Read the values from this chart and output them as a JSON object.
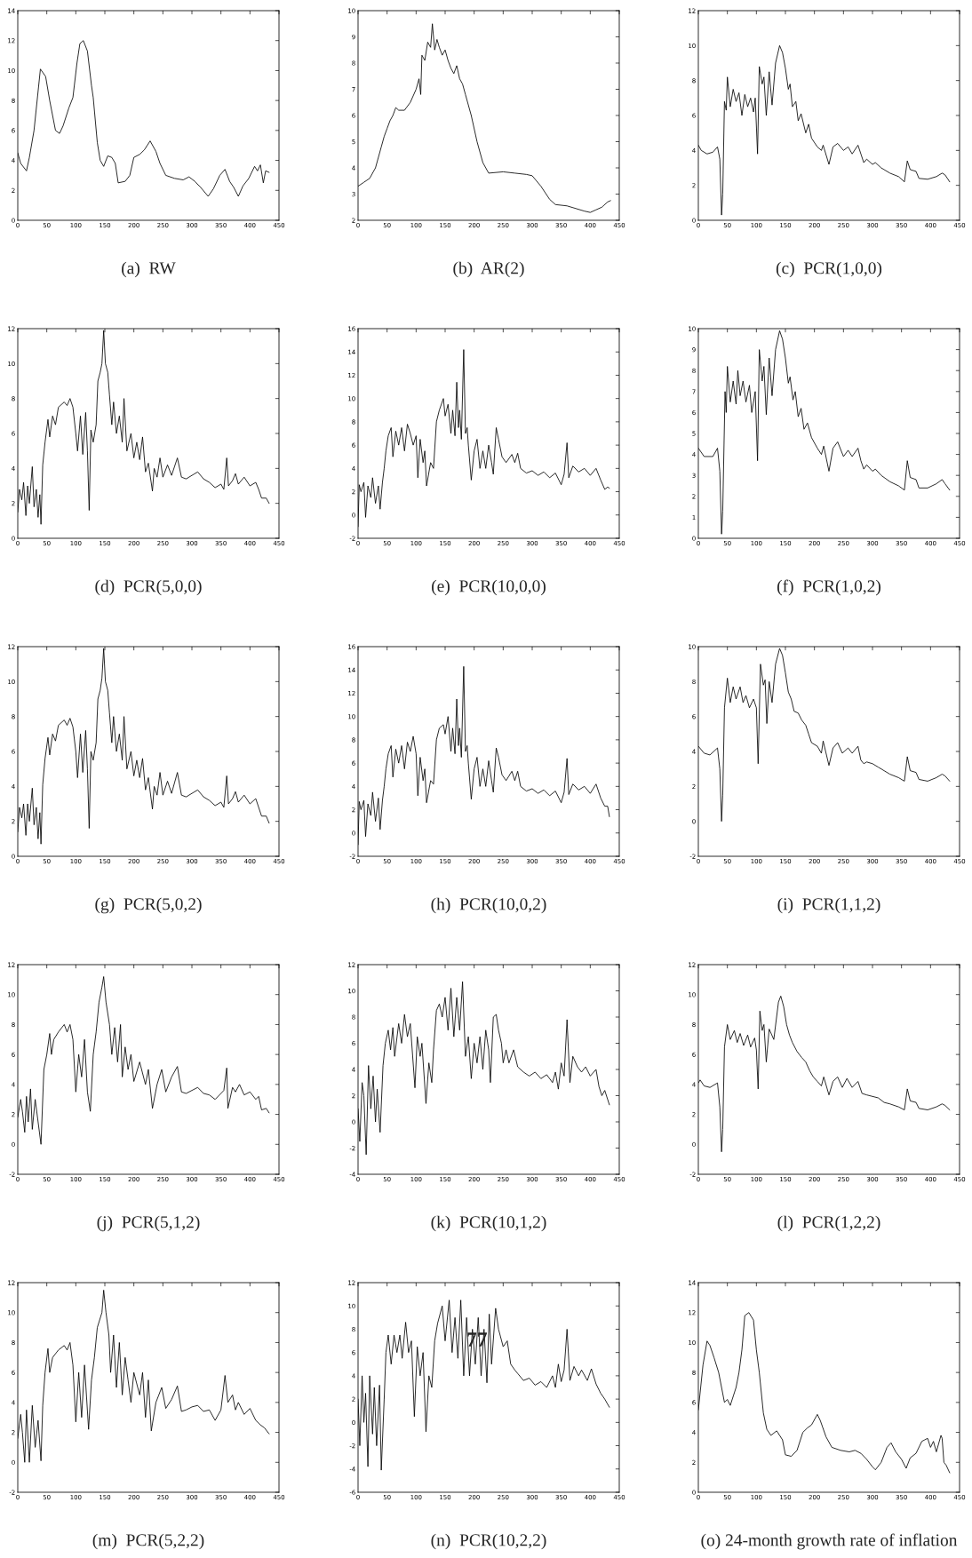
{
  "chart_data": [
    {
      "type": "line",
      "title": "(a)  RW",
      "x": [
        0,
        5,
        15,
        20,
        28,
        39,
        48,
        55,
        65,
        72,
        78,
        88,
        95,
        102,
        107,
        113,
        120,
        127,
        130,
        137,
        142,
        148,
        155,
        162,
        168,
        173,
        185,
        193,
        200,
        210,
        218,
        228,
        238,
        245,
        255,
        270,
        285,
        295,
        305,
        315,
        328,
        337,
        348,
        357,
        365,
        372,
        380,
        388,
        398,
        408,
        413,
        418,
        423,
        427,
        433
      ],
      "series": [
        {
          "color": "#000000",
          "values": [
            4.5,
            3.8,
            3.3,
            4.2,
            6,
            10.1,
            9.6,
            8,
            6,
            5.8,
            6.3,
            7.5,
            8.2,
            10.5,
            11.8,
            12,
            11.3,
            9,
            8.2,
            5.2,
            4,
            3.6,
            4.3,
            4.2,
            3.8,
            2.5,
            2.6,
            3,
            4.2,
            4.4,
            4.7,
            5.3,
            4.6,
            3.8,
            3,
            2.8,
            2.7,
            2.9,
            2.6,
            2.2,
            1.6,
            2.1,
            3,
            3.4,
            2.6,
            2.2,
            1.6,
            2.3,
            2.8,
            3.6,
            3.3,
            3.7,
            2.5,
            3.3,
            3.2
          ]
        }
      ],
      "xlim": [
        0,
        450
      ],
      "xticks": [
        0,
        50,
        100,
        150,
        200,
        250,
        300,
        350,
        400,
        450
      ],
      "ylim": [
        0,
        14
      ],
      "yticks": [
        0,
        2,
        4,
        6,
        8,
        10,
        12,
        14
      ]
    },
    {
      "type": "line",
      "title": "(b)  AR(2)",
      "x": [
        0,
        10,
        20,
        30,
        40,
        45,
        50,
        55,
        60,
        65,
        70,
        80,
        90,
        100,
        105,
        108,
        110,
        115,
        120,
        125,
        128,
        132,
        136,
        140,
        145,
        150,
        155,
        160,
        165,
        170,
        175,
        180,
        185,
        195,
        205,
        215,
        225,
        250,
        270,
        290,
        300,
        315,
        330,
        340,
        360,
        375,
        390,
        400,
        410,
        420,
        430,
        435
      ],
      "series": [
        {
          "color": "#000000",
          "values": [
            3.3,
            3.45,
            3.6,
            4,
            4.8,
            5.2,
            5.5,
            5.8,
            6,
            6.3,
            6.2,
            6.2,
            6.5,
            7,
            7.4,
            6.8,
            8.3,
            8.1,
            8.8,
            8.6,
            9.5,
            8.5,
            8.9,
            8.6,
            8.3,
            8.5,
            8.1,
            7.8,
            7.6,
            7.9,
            7.4,
            7.2,
            6.8,
            6,
            5,
            4.2,
            3.8,
            3.85,
            3.8,
            3.75,
            3.7,
            3.3,
            2.8,
            2.6,
            2.55,
            2.45,
            2.35,
            2.3,
            2.4,
            2.5,
            2.7,
            2.75
          ]
        }
      ],
      "xlim": [
        0,
        450
      ],
      "xticks": [
        0,
        50,
        100,
        150,
        200,
        250,
        300,
        350,
        400,
        450
      ],
      "ylim": [
        2,
        10
      ],
      "yticks": [
        2,
        3,
        4,
        5,
        6,
        7,
        8,
        9,
        10
      ]
    },
    {
      "type": "line",
      "title": "(c)  PCR(1,0,0)",
      "x": [
        0,
        5,
        15,
        25,
        33,
        37,
        40,
        42,
        45,
        48,
        50,
        55,
        60,
        65,
        70,
        75,
        80,
        85,
        90,
        95,
        98,
        102,
        105,
        110,
        113,
        117,
        122,
        127,
        133,
        140,
        145,
        150,
        155,
        158,
        162,
        168,
        172,
        177,
        185,
        190,
        195,
        205,
        212,
        215,
        225,
        232,
        240,
        250,
        258,
        265,
        275,
        280,
        285,
        290,
        300,
        305,
        315,
        330,
        345,
        355,
        360,
        365,
        375,
        380,
        395,
        410,
        420,
        425,
        433
      ],
      "series": [
        {
          "color": "#000000",
          "values": [
            4.3,
            4,
            3.8,
            3.9,
            4.2,
            3.5,
            0.3,
            1.5,
            6.8,
            6.3,
            8.2,
            6.5,
            7.5,
            6.8,
            7.3,
            6,
            7.2,
            6.5,
            7,
            6.2,
            7,
            3.8,
            8.8,
            7.8,
            8.2,
            6,
            8.5,
            6.6,
            9,
            10,
            9.6,
            8.7,
            7.5,
            7.8,
            6.5,
            6.8,
            5.7,
            6.1,
            5,
            5.5,
            4.7,
            4.2,
            4,
            4.3,
            3.2,
            4.2,
            4.4,
            4,
            4.2,
            3.8,
            4.3,
            3.8,
            3.3,
            3.5,
            3.2,
            3.3,
            3,
            2.7,
            2.5,
            2.2,
            3.4,
            2.9,
            2.8,
            2.4,
            2.35,
            2.5,
            2.7,
            2.6,
            2.2
          ]
        }
      ],
      "xlim": [
        0,
        450
      ],
      "xticks": [
        0,
        50,
        100,
        150,
        200,
        250,
        300,
        350,
        400,
        450
      ],
      "ylim": [
        0,
        12
      ],
      "yticks": [
        0,
        2,
        4,
        6,
        8,
        10,
        12
      ]
    },
    {
      "type": "line",
      "title": "(d)  PCR(5,0,0)",
      "x": [
        0,
        3,
        7,
        10,
        14,
        17,
        20,
        25,
        28,
        32,
        35,
        38,
        40,
        43,
        47,
        52,
        55,
        60,
        65,
        70,
        80,
        85,
        90,
        95,
        100,
        103,
        108,
        112,
        117,
        120,
        123,
        126,
        130,
        135,
        138,
        142,
        145,
        148,
        151,
        155,
        158,
        162,
        165,
        170,
        175,
        180,
        183,
        188,
        195,
        200,
        205,
        210,
        215,
        220,
        225,
        232,
        235,
        240,
        245,
        250,
        258,
        265,
        275,
        282,
        290,
        300,
        310,
        320,
        330,
        340,
        350,
        355,
        360,
        363,
        370,
        375,
        380,
        390,
        400,
        410,
        415,
        420,
        428,
        433
      ],
      "series": [
        {
          "color": "#000000",
          "values": [
            1.5,
            2.8,
            2.2,
            3.2,
            1.3,
            3,
            2,
            4.1,
            1.8,
            2.8,
            1.2,
            2.5,
            0.8,
            4.2,
            5.5,
            6.8,
            5.8,
            7,
            6.5,
            7.5,
            7.8,
            7.6,
            8,
            7.5,
            6,
            5,
            7,
            4.8,
            7.2,
            5,
            1.6,
            6.2,
            5.5,
            6.5,
            9,
            9.5,
            10,
            11.9,
            10,
            9.5,
            8.2,
            6.5,
            7.8,
            6,
            7,
            5.5,
            8,
            5,
            6,
            4.6,
            5.5,
            4.5,
            5.8,
            3.8,
            4.3,
            2.7,
            4,
            3.5,
            4.6,
            3.5,
            4.2,
            3.6,
            4.6,
            3.5,
            3.4,
            3.6,
            3.8,
            3.4,
            3.2,
            2.9,
            3.1,
            2.8,
            4.6,
            3,
            3.3,
            3.7,
            3.1,
            3.5,
            3,
            3.2,
            2.8,
            2.3,
            2.3,
            2
          ]
        }
      ],
      "xlim": [
        0,
        450
      ],
      "xticks": [
        0,
        50,
        100,
        150,
        200,
        250,
        300,
        350,
        400,
        450
      ],
      "ylim": [
        0,
        12
      ],
      "yticks": [
        0,
        2,
        4,
        6,
        8,
        10,
        12
      ]
    },
    {
      "type": "line",
      "title": "(e)  PCR(10,0,0)",
      "x": [
        0,
        2,
        5,
        10,
        13,
        17,
        22,
        25,
        30,
        35,
        38,
        42,
        45,
        48,
        52,
        57,
        60,
        65,
        70,
        75,
        80,
        85,
        90,
        95,
        100,
        103,
        107,
        112,
        115,
        118,
        125,
        130,
        135,
        140,
        147,
        150,
        155,
        160,
        163,
        167,
        170,
        173,
        175,
        178,
        182,
        185,
        188,
        190,
        195,
        200,
        205,
        210,
        215,
        220,
        225,
        230,
        233,
        238,
        242,
        248,
        255,
        265,
        270,
        275,
        280,
        290,
        300,
        310,
        320,
        330,
        340,
        350,
        355,
        360,
        363,
        370,
        380,
        390,
        400,
        410,
        418,
        425,
        430,
        433
      ],
      "series": [
        {
          "color": "#000000",
          "values": [
            -1,
            2.6,
            2,
            2.8,
            -0.2,
            2.5,
            1.5,
            3.2,
            1,
            2.5,
            0.5,
            2.8,
            4,
            5.5,
            6.8,
            7.5,
            5,
            7.2,
            6,
            7.5,
            5.5,
            7.8,
            7,
            6,
            6.8,
            3.2,
            6.5,
            4.5,
            5.5,
            2.5,
            4.5,
            4,
            8,
            9,
            10,
            8.5,
            9.5,
            7,
            9,
            6.8,
            11.4,
            7.5,
            9,
            6.5,
            14.2,
            7,
            7.5,
            6,
            3,
            5.5,
            6.5,
            4,
            5.5,
            4,
            6,
            4.5,
            3.5,
            7.5,
            6.5,
            5,
            4.5,
            5.2,
            4.5,
            5.3,
            4,
            3.6,
            3.8,
            3.4,
            3.7,
            3.2,
            3.6,
            2.6,
            3.5,
            6.2,
            3.2,
            4.2,
            3.7,
            4,
            3.4,
            4,
            3,
            2.2,
            2.4,
            2.3
          ]
        }
      ],
      "xlim": [
        0,
        450
      ],
      "xticks": [
        0,
        50,
        100,
        150,
        200,
        250,
        300,
        350,
        400,
        450
      ],
      "ylim": [
        -2,
        16
      ],
      "yticks": [
        -2,
        0,
        2,
        4,
        6,
        8,
        10,
        12,
        14,
        16
      ]
    },
    {
      "type": "line",
      "title": "(f)  PCR(1,0,2)",
      "x": [
        0,
        10,
        25,
        33,
        37,
        40,
        42,
        46,
        48,
        50,
        55,
        60,
        65,
        68,
        72,
        77,
        82,
        88,
        92,
        98,
        102,
        105,
        110,
        113,
        117,
        122,
        127,
        133,
        140,
        145,
        150,
        155,
        158,
        163,
        167,
        172,
        177,
        182,
        188,
        195,
        205,
        212,
        216,
        225,
        232,
        240,
        250,
        258,
        265,
        275,
        280,
        285,
        290,
        300,
        305,
        315,
        330,
        345,
        355,
        360,
        365,
        375,
        380,
        395,
        410,
        420,
        425,
        433
      ],
      "series": [
        {
          "color": "#000000",
          "values": [
            4.3,
            3.9,
            3.9,
            4.3,
            3.2,
            0.2,
            1.3,
            7,
            6,
            8.2,
            6.5,
            7.5,
            6.4,
            8,
            6.8,
            7.5,
            6.5,
            7.3,
            6,
            7,
            3.7,
            9,
            7.5,
            8.2,
            5.9,
            8.6,
            6.8,
            9,
            9.9,
            9.5,
            8.6,
            7.4,
            7.7,
            6.6,
            7,
            5.8,
            6.2,
            5.2,
            5.5,
            4.8,
            4.3,
            4,
            4.4,
            3.2,
            4.3,
            4.6,
            3.9,
            4.2,
            3.9,
            4.3,
            3.7,
            3.3,
            3.5,
            3.2,
            3.3,
            3,
            2.7,
            2.5,
            2.3,
            3.7,
            2.9,
            2.8,
            2.4,
            2.4,
            2.6,
            2.8,
            2.6,
            2.3
          ]
        }
      ],
      "xlim": [
        0,
        450
      ],
      "xticks": [
        0,
        50,
        100,
        150,
        200,
        250,
        300,
        350,
        400,
        450
      ],
      "ylim": [
        0,
        10
      ],
      "yticks": [
        0,
        1,
        2,
        3,
        4,
        5,
        6,
        7,
        8,
        9,
        10
      ]
    },
    {
      "type": "line",
      "title": "(g)  PCR(5,0,2)",
      "x": [
        0,
        3,
        7,
        10,
        14,
        17,
        20,
        25,
        28,
        32,
        35,
        38,
        40,
        43,
        47,
        52,
        55,
        60,
        65,
        70,
        80,
        85,
        90,
        95,
        100,
        103,
        108,
        112,
        117,
        120,
        123,
        126,
        130,
        135,
        138,
        142,
        145,
        148,
        151,
        155,
        158,
        162,
        165,
        170,
        175,
        180,
        183,
        188,
        195,
        200,
        205,
        210,
        215,
        220,
        225,
        232,
        235,
        240,
        245,
        250,
        258,
        265,
        275,
        282,
        290,
        300,
        310,
        320,
        330,
        340,
        350,
        355,
        360,
        363,
        370,
        375,
        380,
        390,
        400,
        410,
        415,
        420,
        428,
        433
      ],
      "series": [
        {
          "color": "#000000",
          "values": [
            1.4,
            2.8,
            2.2,
            3,
            1.2,
            3,
            2,
            3.9,
            1.8,
            2.8,
            1,
            2.5,
            0.7,
            4.1,
            5.6,
            6.8,
            5.8,
            7,
            6.6,
            7.5,
            7.8,
            7.5,
            7.9,
            7.4,
            6,
            4.5,
            7,
            4.8,
            7.2,
            5,
            1.6,
            6,
            5.5,
            6.5,
            9,
            9.5,
            10.2,
            11.9,
            10,
            9.5,
            8.2,
            6.5,
            8,
            6,
            7,
            5.5,
            8,
            5,
            6,
            4.6,
            5.5,
            4.5,
            5.6,
            3.8,
            4.5,
            2.7,
            4,
            3.5,
            4.8,
            3.5,
            4.3,
            3.6,
            4.8,
            3.5,
            3.4,
            3.6,
            3.8,
            3.4,
            3.2,
            2.9,
            3.1,
            2.8,
            4.6,
            3,
            3.3,
            3.7,
            3.1,
            3.5,
            3,
            3.3,
            2.8,
            2.3,
            2.3,
            1.9
          ]
        }
      ],
      "xlim": [
        0,
        450
      ],
      "xticks": [
        0,
        50,
        100,
        150,
        200,
        250,
        300,
        350,
        400,
        450
      ],
      "ylim": [
        0,
        12
      ],
      "yticks": [
        0,
        2,
        4,
        6,
        8,
        10,
        12
      ]
    },
    {
      "type": "line",
      "title": "(h)  PCR(10,0,2)",
      "x": [
        0,
        2,
        5,
        10,
        13,
        17,
        22,
        25,
        30,
        35,
        38,
        42,
        45,
        48,
        52,
        57,
        60,
        65,
        70,
        75,
        80,
        85,
        90,
        95,
        100,
        103,
        107,
        112,
        115,
        118,
        125,
        130,
        135,
        140,
        147,
        150,
        155,
        160,
        163,
        167,
        170,
        173,
        175,
        178,
        182,
        185,
        188,
        190,
        195,
        200,
        205,
        210,
        215,
        220,
        225,
        230,
        233,
        238,
        242,
        248,
        255,
        265,
        270,
        275,
        280,
        290,
        300,
        310,
        320,
        330,
        340,
        350,
        355,
        360,
        363,
        370,
        380,
        390,
        400,
        410,
        418,
        425,
        430,
        433
      ],
      "series": [
        {
          "color": "#000000",
          "values": [
            -1,
            2.7,
            2,
            2.8,
            -0.3,
            2.5,
            1.5,
            3.5,
            1,
            3,
            0.3,
            2.8,
            4,
            5.5,
            6.8,
            7.5,
            4.8,
            7.2,
            6,
            7.5,
            5.5,
            7.8,
            7,
            8.3,
            6.8,
            3.2,
            6.5,
            4.5,
            5.5,
            2.6,
            4.5,
            4.2,
            8,
            9,
            9.3,
            8.5,
            10,
            7,
            9,
            6.8,
            11.5,
            7.5,
            9,
            6.5,
            14.3,
            7,
            7.5,
            6,
            2.9,
            5.5,
            6.5,
            4,
            5.5,
            4,
            6.2,
            4.5,
            3.5,
            7.3,
            6.5,
            5,
            4.5,
            5.3,
            4.5,
            5.3,
            4,
            3.6,
            3.8,
            3.4,
            3.7,
            3.2,
            3.6,
            2.6,
            3.5,
            6.4,
            3.3,
            4.2,
            3.7,
            4,
            3.4,
            4.2,
            3,
            2.3,
            2.3,
            1.4
          ]
        }
      ],
      "xlim": [
        0,
        450
      ],
      "xticks": [
        0,
        50,
        100,
        150,
        200,
        250,
        300,
        350,
        400,
        450
      ],
      "ylim": [
        -2,
        16
      ],
      "yticks": [
        -2,
        0,
        2,
        4,
        6,
        8,
        10,
        12,
        14,
        16
      ]
    },
    {
      "type": "line",
      "title": "(i)  PCR(1,1,2)",
      "x": [
        0,
        10,
        20,
        33,
        37,
        40,
        42,
        45,
        50,
        55,
        60,
        65,
        72,
        77,
        82,
        88,
        95,
        100,
        103,
        107,
        112,
        115,
        118,
        122,
        127,
        133,
        140,
        145,
        150,
        155,
        160,
        165,
        172,
        178,
        185,
        190,
        195,
        205,
        212,
        215,
        225,
        232,
        240,
        248,
        258,
        265,
        275,
        280,
        285,
        290,
        300,
        310,
        320,
        330,
        345,
        355,
        360,
        365,
        375,
        380,
        395,
        410,
        420,
        425,
        433
      ],
      "series": [
        {
          "color": "#000000",
          "values": [
            4.3,
            3.9,
            3.8,
            4.2,
            3,
            0,
            1.5,
            6.5,
            8.2,
            6.8,
            7.7,
            7,
            7.7,
            6.8,
            7.2,
            6.5,
            7,
            6.5,
            3.3,
            9,
            7.8,
            8.1,
            5.6,
            8,
            6.8,
            9,
            9.9,
            9.5,
            8.5,
            7.4,
            7,
            6.3,
            6.2,
            5.8,
            5.5,
            5,
            4.5,
            4.3,
            3.9,
            4.6,
            3.2,
            4.2,
            4.5,
            3.9,
            4.2,
            3.9,
            4.3,
            3.5,
            3.3,
            3.4,
            3.3,
            3.1,
            2.9,
            2.7,
            2.5,
            2.3,
            3.7,
            2.9,
            2.8,
            2.4,
            2.3,
            2.5,
            2.7,
            2.6,
            2.3
          ]
        }
      ],
      "xlim": [
        0,
        450
      ],
      "xticks": [
        0,
        50,
        100,
        150,
        200,
        250,
        300,
        350,
        400,
        450
      ],
      "ylim": [
        -2,
        10
      ],
      "yticks": [
        -2,
        0,
        2,
        4,
        6,
        8,
        10
      ]
    },
    {
      "type": "line",
      "title": "(j)  PCR(5,1,2)",
      "x": [
        0,
        5,
        8,
        12,
        15,
        18,
        22,
        25,
        30,
        35,
        40,
        45,
        50,
        55,
        58,
        62,
        70,
        80,
        85,
        90,
        95,
        100,
        105,
        110,
        115,
        120,
        125,
        130,
        135,
        140,
        145,
        148,
        152,
        158,
        162,
        167,
        172,
        177,
        180,
        185,
        190,
        195,
        200,
        210,
        220,
        225,
        232,
        240,
        248,
        255,
        265,
        275,
        282,
        290,
        300,
        310,
        320,
        330,
        340,
        355,
        360,
        362,
        370,
        375,
        382,
        390,
        400,
        410,
        415,
        420,
        428,
        433
      ],
      "series": [
        {
          "color": "#000000",
          "values": [
            1.8,
            3,
            2.2,
            0.8,
            3.2,
            1.5,
            3.7,
            1,
            3,
            1.5,
            0,
            5,
            6,
            7.4,
            6,
            7,
            7.5,
            8,
            7.5,
            8,
            7,
            3.5,
            6,
            4.5,
            7,
            3.5,
            2.2,
            6,
            7.5,
            9.5,
            10.5,
            11.2,
            9.5,
            8,
            6,
            7.8,
            5.5,
            8,
            4.5,
            6.5,
            5,
            6,
            4.2,
            5.5,
            4,
            5,
            2.4,
            4,
            5,
            3.5,
            4.5,
            5.2,
            3.5,
            3.4,
            3.6,
            3.8,
            3.4,
            3.3,
            3,
            3.6,
            5.1,
            2.4,
            3.8,
            3.5,
            4,
            3.3,
            3.5,
            3,
            3.2,
            2.3,
            2.4,
            2.1
          ]
        }
      ],
      "xlim": [
        0,
        450
      ],
      "xticks": [
        0,
        50,
        100,
        150,
        200,
        250,
        300,
        350,
        400,
        450
      ],
      "ylim": [
        -2,
        12
      ],
      "yticks": [
        -2,
        0,
        2,
        4,
        6,
        8,
        10,
        12
      ]
    },
    {
      "type": "line",
      "title": "(k)  PCR(10,1,2)",
      "x": [
        0,
        3,
        7,
        10,
        14,
        18,
        22,
        26,
        30,
        33,
        38,
        43,
        47,
        52,
        56,
        60,
        63,
        70,
        75,
        80,
        85,
        90,
        98,
        102,
        107,
        110,
        117,
        122,
        127,
        130,
        135,
        140,
        145,
        150,
        155,
        160,
        165,
        170,
        175,
        180,
        185,
        190,
        195,
        200,
        205,
        210,
        215,
        220,
        225,
        228,
        233,
        238,
        242,
        247,
        250,
        255,
        260,
        268,
        275,
        285,
        295,
        305,
        315,
        325,
        335,
        340,
        345,
        350,
        355,
        360,
        365,
        370,
        378,
        385,
        392,
        400,
        410,
        415,
        420,
        425,
        433
      ],
      "series": [
        {
          "color": "#000000",
          "values": [
            1,
            -1.5,
            3,
            2,
            -2.5,
            4.3,
            1,
            3.5,
            0,
            2.5,
            -0.8,
            4.3,
            6,
            7,
            5.5,
            7.2,
            5,
            7.5,
            6,
            8.2,
            6.5,
            7.5,
            2.6,
            6.5,
            5,
            6,
            1.4,
            4.5,
            3,
            5.5,
            8.5,
            9,
            8,
            9.5,
            7,
            10.2,
            6.5,
            9.5,
            7,
            10.7,
            5,
            6.5,
            3.3,
            6,
            4.5,
            6.5,
            4,
            7,
            5.5,
            3,
            8,
            8.2,
            7,
            6,
            4.5,
            5.5,
            4.5,
            5.5,
            4.2,
            3.8,
            3.5,
            3.8,
            3.3,
            3.6,
            3,
            3.8,
            2.5,
            4.5,
            3.5,
            7.8,
            3,
            5,
            4.2,
            3.8,
            4.2,
            3.5,
            4,
            2.7,
            2,
            2.4,
            1.3
          ]
        }
      ],
      "xlim": [
        0,
        450
      ],
      "xticks": [
        0,
        50,
        100,
        150,
        200,
        250,
        300,
        350,
        400,
        450
      ],
      "ylim": [
        -4,
        12
      ],
      "yticks": [
        -4,
        -2,
        0,
        2,
        4,
        6,
        8,
        10,
        12
      ]
    },
    {
      "type": "line",
      "title": "(l)  PCR(1,2,2)",
      "x": [
        0,
        3,
        10,
        20,
        33,
        37,
        40,
        42,
        45,
        50,
        55,
        62,
        67,
        72,
        78,
        85,
        90,
        97,
        100,
        103,
        106,
        110,
        113,
        117,
        122,
        130,
        138,
        142,
        147,
        152,
        157,
        162,
        170,
        178,
        185,
        192,
        198,
        205,
        212,
        216,
        225,
        232,
        240,
        248,
        256,
        265,
        275,
        282,
        290,
        300,
        310,
        320,
        330,
        345,
        355,
        360,
        365,
        375,
        380,
        395,
        410,
        420,
        425,
        433
      ],
      "series": [
        {
          "color": "#000000",
          "values": [
            4.1,
            4.3,
            3.9,
            3.8,
            4.1,
            2.5,
            -0.5,
            1,
            6.5,
            8,
            7,
            7.6,
            6.8,
            7.4,
            6.6,
            7.3,
            6.5,
            7.1,
            6.3,
            3.7,
            8.9,
            7.6,
            8,
            5.5,
            7.7,
            7,
            9.5,
            9.9,
            9.2,
            8,
            7.3,
            6.8,
            6.2,
            5.8,
            5.5,
            4.9,
            4.5,
            4.2,
            3.9,
            4.5,
            3.3,
            4.2,
            4.5,
            3.8,
            4.4,
            3.8,
            4.2,
            3.4,
            3.3,
            3.2,
            3.1,
            2.8,
            2.7,
            2.5,
            2.3,
            3.7,
            2.9,
            2.8,
            2.4,
            2.3,
            2.5,
            2.7,
            2.6,
            2.3
          ]
        }
      ],
      "xlim": [
        0,
        450
      ],
      "xticks": [
        0,
        50,
        100,
        150,
        200,
        250,
        300,
        350,
        400,
        450
      ],
      "ylim": [
        -2,
        12
      ],
      "yticks": [
        -2,
        0,
        2,
        4,
        6,
        8,
        10,
        12
      ]
    },
    {
      "type": "line",
      "title": "(m)  PCR(5,2,2)",
      "x": [
        0,
        5,
        8,
        12,
        15,
        20,
        25,
        30,
        35,
        40,
        43,
        47,
        52,
        55,
        60,
        70,
        80,
        85,
        90,
        95,
        100,
        105,
        110,
        115,
        122,
        127,
        132,
        137,
        145,
        148,
        152,
        157,
        160,
        165,
        170,
        175,
        180,
        185,
        190,
        195,
        200,
        210,
        215,
        220,
        225,
        230,
        238,
        248,
        255,
        265,
        275,
        282,
        290,
        300,
        310,
        320,
        330,
        340,
        350,
        357,
        362,
        370,
        375,
        380,
        390,
        400,
        410,
        418,
        425,
        433
      ],
      "series": [
        {
          "color": "#000000",
          "values": [
            1.6,
            3.2,
            2,
            0,
            3.5,
            0,
            3.8,
            1,
            2.8,
            0.1,
            3.8,
            6,
            7.6,
            6,
            7,
            7.5,
            7.8,
            7.5,
            8,
            6.5,
            2.7,
            6,
            3,
            6.5,
            2.2,
            5.5,
            7,
            9,
            10,
            11.5,
            10,
            8.5,
            6,
            8.5,
            5,
            8,
            4.5,
            7,
            5.5,
            4,
            6,
            4.5,
            6,
            3,
            5.5,
            2.1,
            4,
            5,
            3.6,
            4.2,
            5.1,
            3.4,
            3.5,
            3.7,
            3.8,
            3.4,
            3.5,
            2.8,
            3.5,
            5.8,
            4,
            4.5,
            3.5,
            4,
            3.2,
            3.6,
            2.8,
            2.5,
            2.3,
            1.9
          ]
        }
      ],
      "xlim": [
        0,
        450
      ],
      "xticks": [
        0,
        50,
        100,
        150,
        200,
        250,
        300,
        350,
        400,
        450
      ],
      "ylim": [
        -2,
        12
      ],
      "yticks": [
        -2,
        0,
        2,
        4,
        6,
        8,
        10,
        12
      ]
    },
    {
      "type": "line",
      "title": "(n)  PCR(10,2,2)",
      "annotations": [
        "77"
      ],
      "x": [
        0,
        3,
        7,
        10,
        13,
        17,
        20,
        25,
        28,
        32,
        37,
        40,
        45,
        48,
        52,
        57,
        62,
        67,
        72,
        76,
        82,
        87,
        92,
        97,
        102,
        107,
        112,
        117,
        122,
        127,
        132,
        137,
        145,
        150,
        157,
        162,
        167,
        172,
        177,
        182,
        187,
        192,
        197,
        202,
        207,
        212,
        217,
        222,
        226,
        230,
        237,
        242,
        250,
        257,
        263,
        270,
        275,
        285,
        295,
        305,
        315,
        325,
        335,
        340,
        345,
        350,
        355,
        360,
        365,
        372,
        380,
        385,
        395,
        402,
        410,
        418,
        425,
        433
      ],
      "series": [
        {
          "color": "#000000",
          "values": [
            2,
            -2,
            4,
            0,
            2.5,
            -3.8,
            4,
            -1,
            3,
            -2,
            3.2,
            -4.1,
            2,
            6,
            7.5,
            5,
            7.5,
            6,
            7.5,
            5.5,
            8.6,
            6,
            7,
            0.5,
            6.5,
            4,
            6,
            -0.8,
            4,
            3,
            7,
            8.5,
            10,
            7,
            10.5,
            6,
            9,
            5.5,
            10.5,
            4,
            9,
            4,
            8,
            5,
            9,
            4,
            8,
            3.4,
            9.3,
            5,
            9.8,
            8,
            6.5,
            7,
            5,
            4.5,
            4.2,
            3.6,
            3.8,
            3.2,
            3.5,
            3,
            4,
            3,
            5,
            3.5,
            4.5,
            8,
            3.6,
            4.8,
            4,
            4.5,
            3.6,
            4.6,
            3.3,
            2.5,
            2,
            1.3
          ]
        }
      ],
      "xlim": [
        0,
        450
      ],
      "xticks": [
        0,
        50,
        100,
        150,
        200,
        250,
        300,
        350,
        400,
        450
      ],
      "ylim": [
        -6,
        12
      ],
      "yticks": [
        -6,
        -4,
        -2,
        0,
        2,
        4,
        6,
        8,
        10,
        12
      ]
    },
    {
      "type": "line",
      "title": "(o) 24-month growth rate of inflation",
      "x": [
        0,
        8,
        15,
        20,
        27,
        35,
        45,
        50,
        55,
        65,
        70,
        75,
        80,
        87,
        95,
        100,
        105,
        112,
        118,
        125,
        135,
        145,
        150,
        160,
        170,
        180,
        188,
        195,
        205,
        210,
        220,
        230,
        245,
        260,
        270,
        280,
        290,
        300,
        305,
        315,
        325,
        332,
        340,
        350,
        358,
        365,
        375,
        385,
        390,
        395,
        400,
        405,
        410,
        418,
        420,
        423,
        427,
        433
      ],
      "series": [
        {
          "color": "#000000",
          "values": [
            5.5,
            8.5,
            10.1,
            9.8,
            9,
            8,
            6,
            6.2,
            5.8,
            7,
            8,
            9.5,
            11.8,
            12,
            11.5,
            9.5,
            8,
            5.3,
            4.2,
            3.8,
            4.1,
            3.5,
            2.5,
            2.4,
            2.8,
            4,
            4.3,
            4.5,
            5.2,
            4.8,
            3.7,
            3,
            2.8,
            2.7,
            2.8,
            2.6,
            2.2,
            1.7,
            1.5,
            2,
            3,
            3.3,
            2.7,
            2.2,
            1.6,
            2.3,
            2.6,
            3.4,
            3.5,
            3.6,
            3,
            3.4,
            2.7,
            3.8,
            3.6,
            2,
            1.8,
            1.3
          ]
        }
      ],
      "xlim": [
        0,
        450
      ],
      "xticks": [
        0,
        50,
        100,
        150,
        200,
        250,
        300,
        350,
        400,
        450
      ],
      "ylim": [
        0,
        14
      ],
      "yticks": [
        0,
        2,
        4,
        6,
        8,
        10,
        12,
        14
      ]
    }
  ]
}
